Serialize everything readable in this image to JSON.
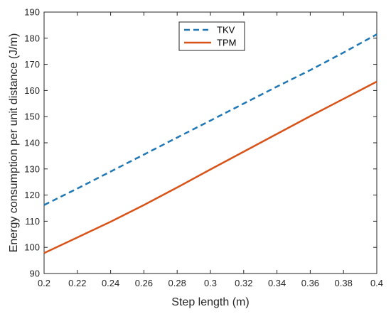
{
  "chart_data": {
    "type": "line",
    "xlabel": "Step length (m)",
    "ylabel": "Energy consumption per unit distance (J/m)",
    "xlim": [
      0.2,
      0.4
    ],
    "ylim": [
      90,
      190
    ],
    "xticks": [
      0.2,
      0.22,
      0.24,
      0.26,
      0.28,
      0.3,
      0.32,
      0.34,
      0.36,
      0.38,
      0.4
    ],
    "xtick_labels": [
      "0.2",
      "0.22",
      "0.24",
      "0.26",
      "0.28",
      "0.3",
      "0.32",
      "0.34",
      "0.36",
      "0.38",
      "0.4"
    ],
    "yticks": [
      90,
      100,
      110,
      120,
      130,
      140,
      150,
      160,
      170,
      180,
      190
    ],
    "ytick_labels": [
      "90",
      "100",
      "110",
      "120",
      "130",
      "140",
      "150",
      "160",
      "170",
      "180",
      "190"
    ],
    "grid": false,
    "legend_position": "top-center",
    "x": [
      0.2,
      0.22,
      0.24,
      0.26,
      0.28,
      0.3,
      0.32,
      0.34,
      0.36,
      0.38,
      0.4
    ],
    "series": [
      {
        "name": "TKV",
        "style": "dashed",
        "color": "#1f77b4",
        "values": [
          116.2,
          122.5,
          129.0,
          135.5,
          142.0,
          148.5,
          155.0,
          161.5,
          167.8,
          174.5,
          181.5
        ]
      },
      {
        "name": "TPM",
        "style": "solid",
        "color": "#d95319",
        "values": [
          97.8,
          103.8,
          109.8,
          116.2,
          122.9,
          129.8,
          136.6,
          143.4,
          150.2,
          156.8,
          163.4
        ]
      }
    ]
  }
}
